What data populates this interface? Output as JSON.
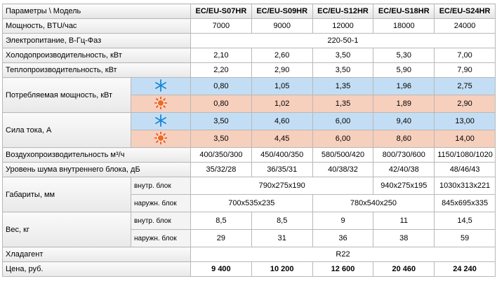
{
  "header": {
    "columns": [
      "Параметры \\ Модель",
      "EC/EU-S07HR",
      "EC/EU-S09HR",
      "EC/EU-S12HR",
      "EC/EU-S18HR",
      "EC/EU-S24HR"
    ]
  },
  "rows": [
    {
      "label": "Мощность, BTU/час",
      "values": [
        "7000",
        "9000",
        "12000",
        "18000",
        "24000"
      ]
    },
    {
      "label": "Электропитание, В-Гц-Фаз",
      "values": [
        "220-50-1"
      ]
    },
    {
      "label": "Холодопроизводительность, кВт",
      "values": [
        "2,10",
        "2,60",
        "3,50",
        "5,30",
        "7,00"
      ]
    },
    {
      "label": "Теплопроизводительность, кВт",
      "values": [
        "2,20",
        "2,90",
        "3,50",
        "5,90",
        "7,90"
      ]
    },
    {
      "label": "Потребляемая мощность, кВт",
      "cooling": [
        "0,80",
        "1,05",
        "1,35",
        "1,96",
        "2,75"
      ],
      "heating": [
        "0,80",
        "1,02",
        "1,35",
        "1,89",
        "2,90"
      ]
    },
    {
      "label": "Сила тока, А",
      "cooling": [
        "3,50",
        "4,60",
        "6,00",
        "9,40",
        "13,00"
      ],
      "heating": [
        "3,50",
        "4,45",
        "6,00",
        "8,60",
        "14,00"
      ]
    },
    {
      "label": "Воздухопроизводительность м³/ч",
      "values": [
        "400/350/300",
        "450/400/350",
        "580/500/420",
        "800/730/600",
        "1150/1080/1020"
      ]
    },
    {
      "label": "Уровень шума внутреннего блока, дБ",
      "values": [
        "35/32/28",
        "36/35/31",
        "40/38/32",
        "42/40/38",
        "48/46/43"
      ]
    },
    {
      "label": "Габариты, мм",
      "sub": [
        "внутр. блок",
        "наружн. блок"
      ],
      "indoor": [
        "790x275x190",
        "940x275x195",
        "1030x313x221"
      ],
      "outdoor": [
        "700x535x235",
        "780x540x250",
        "845x695x335"
      ]
    },
    {
      "label": "Вес, кг",
      "sub": [
        "внутр. блок",
        "наружн. блок"
      ],
      "indoor": [
        "8,5",
        "8,5",
        "9",
        "11",
        "14,5"
      ],
      "outdoor": [
        "29",
        "31",
        "36",
        "38",
        "59"
      ]
    },
    {
      "label": "Хладагент",
      "values": [
        "R22"
      ]
    },
    {
      "label": "Цена, руб.",
      "values": [
        "9 400",
        "10 200",
        "12 600",
        "20 460",
        "24 240"
      ]
    }
  ]
}
